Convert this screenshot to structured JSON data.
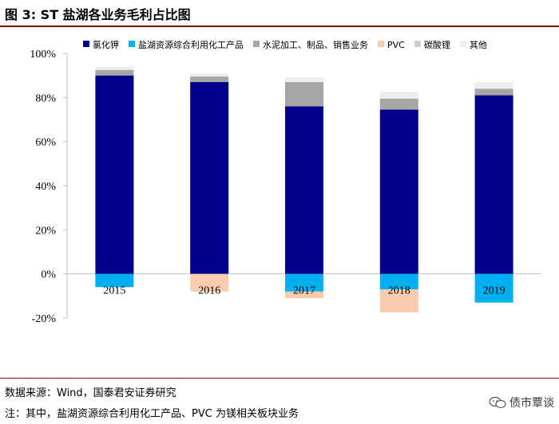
{
  "title": "图 3: ST 盐湖各业务毛利占比图",
  "source": "数据来源：Wind，国泰君安证券研究",
  "note": "注：其中，盐湖资源综合利用化工产品、PVC 为镁相关板块业务",
  "brand": "债市覃谈",
  "chart_data": {
    "type": "bar",
    "stacked": true,
    "categories": [
      "2015",
      "2016",
      "2017",
      "2018",
      "2019"
    ],
    "ylim": [
      -20,
      100
    ],
    "yticks": [
      -20,
      0,
      20,
      40,
      60,
      80,
      100
    ],
    "ytick_labels": [
      "-20%",
      "0%",
      "20%",
      "40%",
      "60%",
      "80%",
      "100%"
    ],
    "legend_position": "top",
    "series": [
      {
        "name": "氯化钾",
        "color": "#00008b",
        "values": [
          90,
          87,
          76,
          74.5,
          81
        ]
      },
      {
        "name": "盐湖资源综合利用化工产品",
        "color": "#00b0f0",
        "values": [
          -6,
          0,
          -8,
          -7,
          -13
        ]
      },
      {
        "name": "水泥加工、制品、销售业务",
        "color": "#a6a6a6",
        "values": [
          2.5,
          2.5,
          11,
          5,
          3
        ]
      },
      {
        "name": "PVC",
        "color": "#f8cbad",
        "values": [
          0,
          -8,
          -3,
          -10.5,
          0
        ]
      },
      {
        "name": "碳酸锂",
        "color": "#d0d0d0",
        "values": [
          0,
          0,
          0,
          0,
          0
        ]
      },
      {
        "name": "其他",
        "color": "#ededed",
        "values": [
          1.5,
          1.5,
          2,
          3,
          3
        ]
      }
    ]
  }
}
